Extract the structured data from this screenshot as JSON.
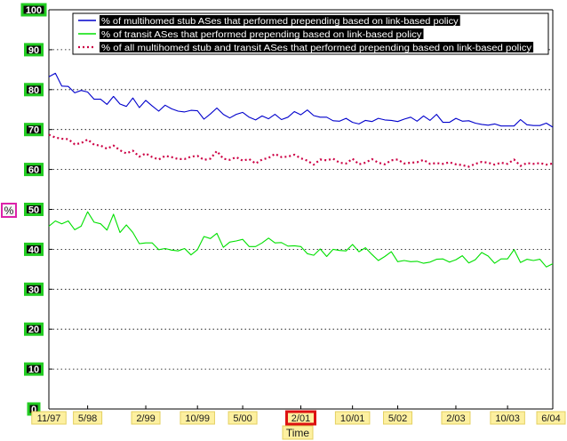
{
  "chart_data": {
    "type": "line",
    "title": "",
    "xlabel": "Time",
    "ylabel": "%",
    "ylim": [
      0,
      100
    ],
    "yticks": [
      0,
      10,
      20,
      30,
      40,
      50,
      60,
      70,
      80,
      90,
      100
    ],
    "xlim": [
      0,
      78
    ],
    "xticks": [
      {
        "label": "11/97",
        "x": 0
      },
      {
        "label": "5/98",
        "x": 6
      },
      {
        "label": "2/99",
        "x": 15
      },
      {
        "label": "10/99",
        "x": 23
      },
      {
        "label": "5/00",
        "x": 30
      },
      {
        "label": "2/01",
        "x": 39
      },
      {
        "label": "10/01",
        "x": 47
      },
      {
        "label": "5/02",
        "x": 54
      },
      {
        "label": "2/03",
        "x": 63
      },
      {
        "label": "10/03",
        "x": 71
      },
      {
        "label": "6/04",
        "x": 79
      }
    ],
    "highlighted_xtick": "2/01",
    "grid": "horizontal dotted",
    "legend_position": "top",
    "series": [
      {
        "name": "% of multihomed stub ASes that performed prepending based on link-based policy",
        "color": "#0000cc",
        "style": "solid",
        "values": [
          83.2,
          84.1,
          80.9,
          80.8,
          79.2,
          79.8,
          79.4,
          77.6,
          77.6,
          76.3,
          78.3,
          76.4,
          75.8,
          77.9,
          75.5,
          77.3,
          75.9,
          74.6,
          76.1,
          75.2,
          74.6,
          74.4,
          74.8,
          74.7,
          72.6,
          73.9,
          75.4,
          73.8,
          72.9,
          73.8,
          74.3,
          73.1,
          72.4,
          73.4,
          72.7,
          73.8,
          72.5,
          73.1,
          74.5,
          73.7,
          74.9,
          73.5,
          73.1,
          73.1,
          72.2,
          72.1,
          72.8,
          71.8,
          71.4,
          72.3,
          72.0,
          72.8,
          72.4,
          72.3,
          72.0,
          72.6,
          73.1,
          72.1,
          73.4,
          72.3,
          73.8,
          71.8,
          71.8,
          72.8,
          72.1,
          72.2,
          71.6,
          71.3,
          71.1,
          71.4,
          70.9,
          70.9,
          70.9,
          72.5,
          71.2,
          71.0,
          71.0,
          71.6,
          70.6
        ]
      },
      {
        "name": "% of transit ASes that performed prepending based on link-based policy",
        "color": "#00e000",
        "style": "solid",
        "values": [
          45.8,
          47.1,
          46.4,
          47.1,
          44.9,
          45.8,
          49.4,
          46.8,
          46.4,
          44.8,
          48.8,
          44.2,
          46.1,
          44.2,
          41.4,
          41.6,
          41.6,
          39.9,
          40.2,
          39.8,
          39.6,
          40.2,
          38.6,
          39.9,
          43.2,
          42.7,
          44.0,
          40.5,
          41.8,
          42.1,
          42.5,
          40.7,
          40.7,
          41.6,
          42.8,
          41.6,
          41.7,
          40.8,
          40.9,
          40.7,
          38.9,
          38.5,
          40.1,
          38.2,
          40.0,
          39.7,
          39.6,
          41.2,
          39.4,
          40.4,
          38.7,
          37.2,
          38.2,
          39.4,
          36.9,
          37.2,
          36.9,
          37.0,
          36.5,
          36.8,
          37.5,
          37.6,
          36.8,
          37.4,
          38.4,
          36.6,
          37.4,
          39.2,
          38.3,
          36.5,
          37.6,
          37.6,
          39.9,
          36.7,
          37.5,
          37.2,
          37.5,
          35.6,
          36.4
        ]
      },
      {
        "name": "% of all multihomed stub and transit ASes that performed prepending based on link-based policy",
        "color": "#cc0044",
        "style": "dotted",
        "values": [
          68.7,
          68.0,
          67.7,
          67.6,
          66.3,
          66.6,
          67.5,
          66.2,
          66.0,
          65.2,
          66.0,
          64.8,
          64.0,
          64.7,
          63.2,
          64.0,
          63.1,
          62.5,
          63.4,
          63.1,
          62.6,
          62.6,
          63.2,
          63.4,
          62.4,
          62.7,
          64.6,
          62.7,
          62.4,
          63.1,
          62.2,
          62.6,
          61.5,
          62.5,
          62.9,
          63.9,
          63.1,
          63.2,
          63.7,
          62.8,
          62.2,
          61.2,
          62.5,
          62.3,
          62.7,
          61.7,
          61.5,
          62.7,
          61.3,
          61.7,
          62.6,
          61.7,
          61.3,
          62.3,
          62.5,
          61.5,
          61.7,
          61.8,
          62.4,
          61.4,
          61.6,
          61.4,
          61.8,
          61.3,
          61.1,
          60.7,
          61.4,
          61.9,
          61.7,
          61.2,
          61.7,
          61.4,
          62.5,
          60.9,
          61.6,
          61.4,
          61.6,
          61.2,
          61.5
        ]
      }
    ]
  }
}
